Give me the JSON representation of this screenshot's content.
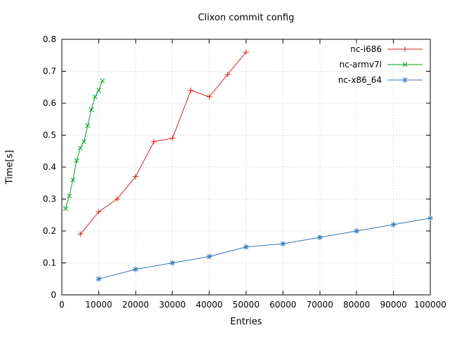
{
  "chart_data": {
    "type": "line",
    "title": "Clixon commit config",
    "xlabel": "Entries",
    "ylabel": "Time[s]",
    "xlim": [
      0,
      100000
    ],
    "ylim": [
      0,
      0.8
    ],
    "grid": true,
    "legend_position": "top-right-inside",
    "xticks": [
      0,
      10000,
      20000,
      30000,
      40000,
      50000,
      60000,
      70000,
      80000,
      90000,
      100000
    ],
    "xtick_labels": [
      "0",
      "10000",
      "20000",
      "30000",
      "40000",
      "50000",
      "60000",
      "70000",
      "80000",
      "90000",
      "100000"
    ],
    "yticks": [
      0,
      0.1,
      0.2,
      0.3,
      0.4,
      0.5,
      0.6,
      0.7,
      0.8
    ],
    "ytick_labels": [
      "0",
      "0.1",
      "0.2",
      "0.3",
      "0.4",
      "0.5",
      "0.6",
      "0.7",
      "0.8"
    ],
    "colors": {
      "grid": "#c8c8c8",
      "axis": "#000000"
    },
    "series": [
      {
        "name": "nc-i686",
        "color": "#dd2222",
        "marker": "plus",
        "points": [
          [
            5000,
            0.19
          ],
          [
            10000,
            0.26
          ],
          [
            15000,
            0.3
          ],
          [
            20000,
            0.37
          ],
          [
            25000,
            0.48
          ],
          [
            30000,
            0.49
          ],
          [
            35000,
            0.64
          ],
          [
            40000,
            0.62
          ],
          [
            45000,
            0.69
          ],
          [
            50000,
            0.76
          ]
        ]
      },
      {
        "name": "nc-armv7l",
        "color": "#00a020",
        "marker": "cross",
        "points": [
          [
            1000,
            0.27
          ],
          [
            2000,
            0.31
          ],
          [
            3000,
            0.36
          ],
          [
            4000,
            0.42
          ],
          [
            5000,
            0.46
          ],
          [
            6000,
            0.48
          ],
          [
            7000,
            0.53
          ],
          [
            8000,
            0.58
          ],
          [
            9000,
            0.62
          ],
          [
            10000,
            0.64
          ],
          [
            11000,
            0.67
          ]
        ]
      },
      {
        "name": "nc-x86_64",
        "color": "#3377bb",
        "marker": "asterisk",
        "points": [
          [
            10000,
            0.05
          ],
          [
            20000,
            0.08
          ],
          [
            30000,
            0.1
          ],
          [
            40000,
            0.12
          ],
          [
            50000,
            0.15
          ],
          [
            60000,
            0.16
          ],
          [
            70000,
            0.18
          ],
          [
            80000,
            0.2
          ],
          [
            90000,
            0.22
          ],
          [
            100000,
            0.24
          ]
        ]
      }
    ]
  }
}
